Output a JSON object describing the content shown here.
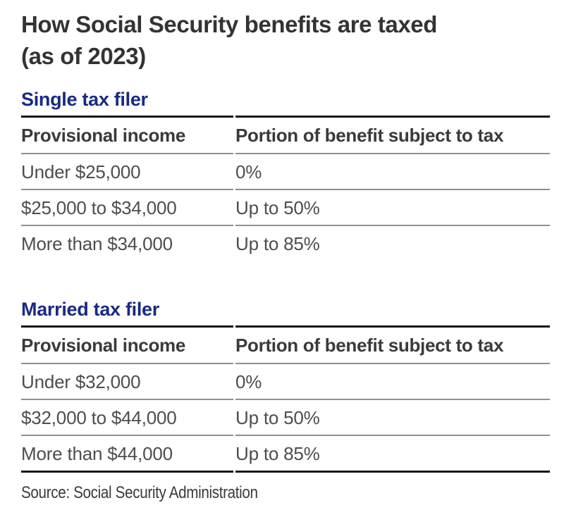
{
  "title": {
    "line1": "How Social Security benefits are taxed",
    "line2": "(as of 2023)"
  },
  "source": "Source: Social Security Administration",
  "colors": {
    "title_text": "#333336",
    "section_heading_blue": "#182a82",
    "header_text": "#3a3a3c",
    "body_text": "#4d4d4f",
    "rule_black": "#161617",
    "rule_gray": "#8f8f91",
    "background": "#ffffff"
  },
  "chart_data": [
    {
      "type": "table",
      "title": "Single tax filer",
      "columns": [
        "Provisional income",
        "Portion of benefit subject to tax"
      ],
      "rows": [
        [
          "Under $25,000",
          "0%"
        ],
        [
          "$25,000 to $34,000",
          "Up to 50%"
        ],
        [
          "More than $34,000",
          "Up to 85%"
        ]
      ]
    },
    {
      "type": "table",
      "title": "Married tax filer",
      "columns": [
        "Provisional income",
        "Portion of benefit subject to tax"
      ],
      "rows": [
        [
          "Under $32,000",
          "0%"
        ],
        [
          "$32,000 to $44,000",
          "Up to 50%"
        ],
        [
          "More than $44,000",
          "Up to 85%"
        ]
      ]
    }
  ]
}
